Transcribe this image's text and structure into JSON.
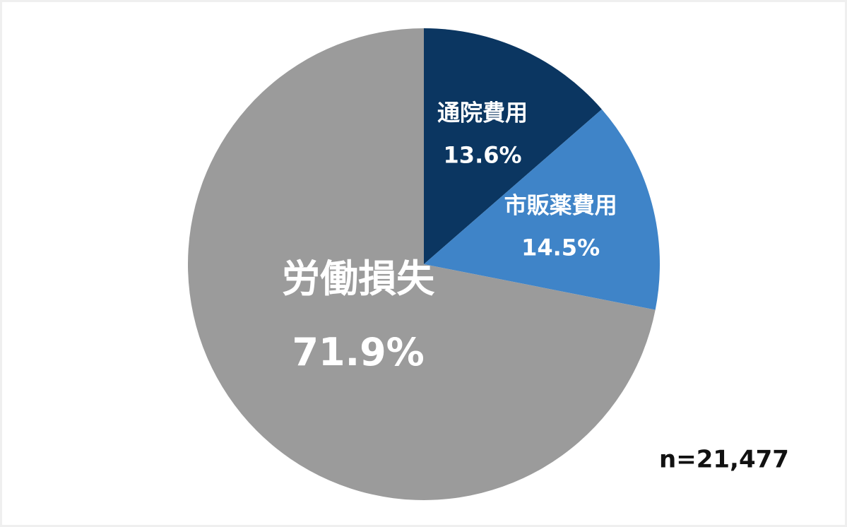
{
  "chart_data": {
    "type": "pie",
    "categories": [
      "通院費用",
      "市販薬費用",
      "労働損失"
    ],
    "values": [
      13.6,
      14.5,
      71.9
    ],
    "value_labels": [
      "13.6%",
      "14.5%",
      "71.9%"
    ],
    "colors": [
      "#0b3661",
      "#3f84c8",
      "#9b9b9b"
    ],
    "annotation": "n=21,477"
  }
}
